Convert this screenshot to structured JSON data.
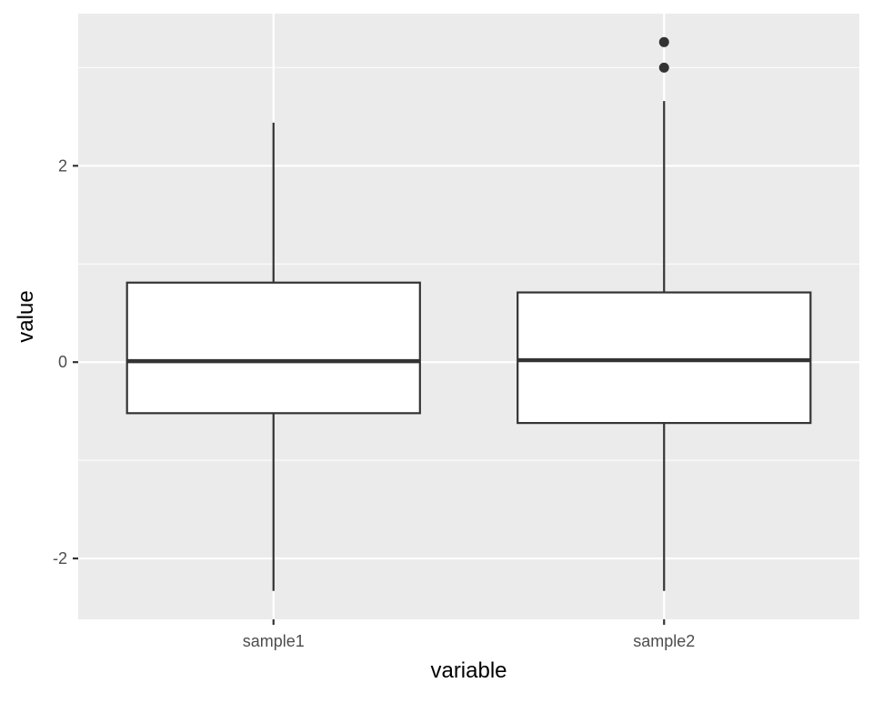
{
  "chart_data": {
    "type": "boxplot",
    "title": "",
    "xlabel": "variable",
    "ylabel": "value",
    "ylim": [
      -2.62,
      3.55
    ],
    "y_ticks_major": [
      -2,
      0,
      2
    ],
    "y_tick_labels": [
      "-2",
      "0",
      "2"
    ],
    "y_ticks_minor": [
      -1,
      1,
      3
    ],
    "grid": true,
    "legend": "none",
    "categories": [
      "sample1",
      "sample2"
    ],
    "boxes": [
      {
        "category": "sample1",
        "whisker_low": -2.33,
        "q1": -0.52,
        "median": 0.01,
        "q3": 0.81,
        "whisker_high": 2.44,
        "outliers": []
      },
      {
        "category": "sample2",
        "whisker_low": -2.33,
        "q1": -0.62,
        "median": 0.02,
        "q3": 0.71,
        "whisker_high": 2.66,
        "outliers": [
          3.0,
          3.26
        ]
      }
    ],
    "colors": {
      "panel_background": "#ebebeb",
      "grid_line": "#ffffff",
      "box_fill": "#ffffff",
      "box_stroke": "#333333",
      "tick_text": "#4d4d4d",
      "axis_title": "#000000",
      "tick_mark": "#333333"
    }
  }
}
